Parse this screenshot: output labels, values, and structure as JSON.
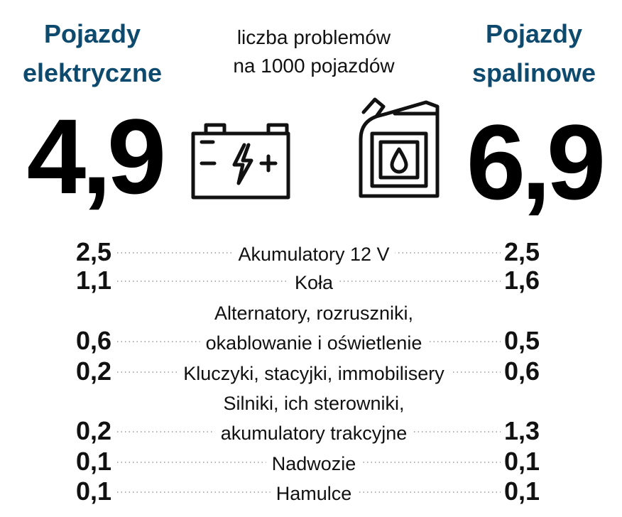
{
  "header": {
    "left_title": [
      "Pojazdy",
      "elektryczne"
    ],
    "subtitle": [
      "liczba problemów",
      "na 1000 pojazdów"
    ],
    "right_title": [
      "Pojazdy",
      "spalinowe"
    ],
    "left_total": "4,9",
    "right_total": "6,9"
  },
  "table": {
    "rows": [
      {
        "left": "2,5",
        "label": [
          "Akumulatory 12 V"
        ],
        "right": "2,5"
      },
      {
        "left": "1,1",
        "label": [
          "Koła"
        ],
        "right": "1,6"
      },
      {
        "left": "0,6",
        "label": [
          "Alternatory, rozruszniki,",
          "okablowanie i oświetlenie"
        ],
        "right": "0,5"
      },
      {
        "left": "0,2",
        "label": [
          "Kluczyki, stacyjki, immobilisery"
        ],
        "right": "0,6"
      },
      {
        "left": "0,2",
        "label": [
          "Silniki, ich sterowniki,",
          "akumulatory trakcyjne"
        ],
        "right": "1,3"
      },
      {
        "left": "0,1",
        "label": [
          "Nadwozie"
        ],
        "right": "0,1"
      },
      {
        "left": "0,1",
        "label": [
          "Hamulce"
        ],
        "right": "0,1"
      }
    ]
  }
}
